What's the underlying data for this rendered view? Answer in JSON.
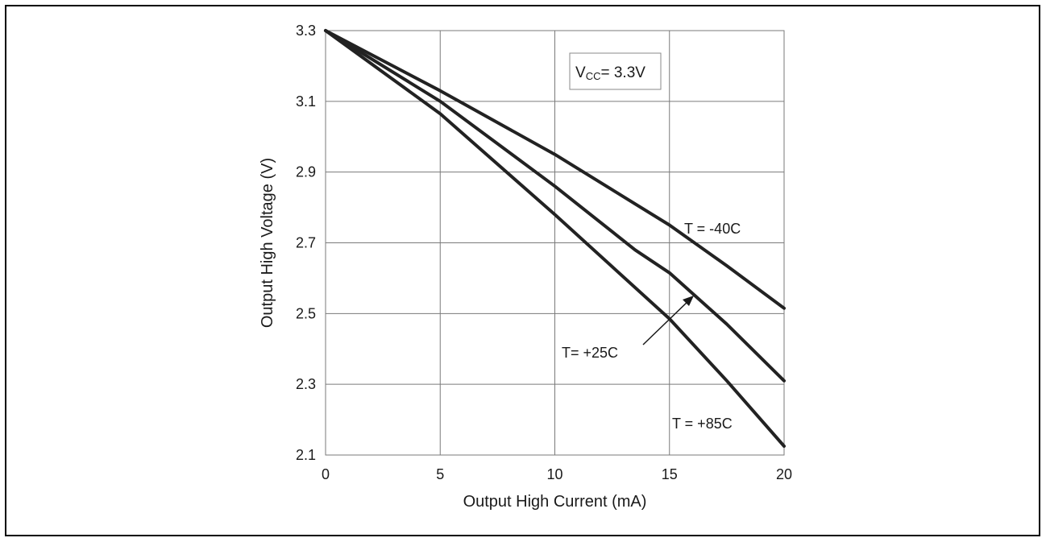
{
  "chart_data": {
    "type": "line",
    "title": "",
    "xlabel": "Output High Current (mA)",
    "ylabel": "Output High Voltage (V)",
    "xlim": [
      0,
      20
    ],
    "ylim": [
      2.1,
      3.3
    ],
    "xticks": [
      "0",
      "5",
      "10",
      "15",
      "20"
    ],
    "yticks": [
      "2.1",
      "2.3",
      "2.5",
      "2.7",
      "2.9",
      "3.1",
      "3.3"
    ],
    "grid": true,
    "condition_box": {
      "prefix": "V",
      "subscript": "CC",
      "suffix": "= 3.3V"
    },
    "series": [
      {
        "name": "T = -40C",
        "x": [
          0,
          5,
          10,
          12.5,
          15,
          17.5,
          20
        ],
        "y": [
          3.3,
          3.13,
          2.95,
          2.85,
          2.75,
          2.635,
          2.515
        ]
      },
      {
        "name": "T= +25C",
        "x": [
          0,
          5,
          10,
          13.5,
          15,
          17.5,
          20
        ],
        "y": [
          3.3,
          3.1,
          2.86,
          2.68,
          2.615,
          2.47,
          2.31
        ]
      },
      {
        "name": "T = +85C",
        "x": [
          0,
          5,
          10,
          15,
          17.5,
          20
        ],
        "y": [
          3.3,
          3.065,
          2.78,
          2.485,
          2.31,
          2.125
        ]
      }
    ],
    "line_color": "#222222",
    "grid_color": "#7a7a7a"
  }
}
